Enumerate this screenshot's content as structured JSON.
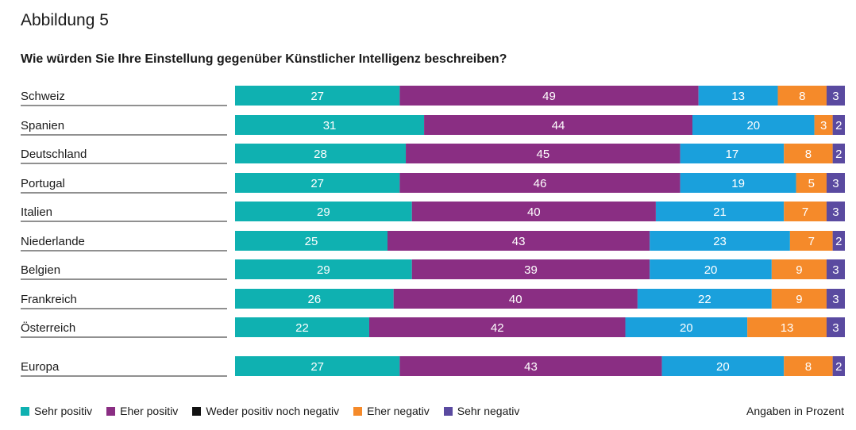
{
  "figure_label": "Abbildung 5",
  "unit_note": "Angaben in Prozent",
  "colors": {
    "sehr_positiv": "#0fb1b1",
    "eher_positiv": "#8a2e83",
    "weder": "#111111",
    "eher_negativ": "#f58a2a",
    "sehr_negativ": "#5a4aa0"
  },
  "chart_data": {
    "type": "bar",
    "orientation": "horizontal",
    "stacked": true,
    "title": "Wie würden Sie Ihre Einstellung gegenüber Künstlicher Intelligenz beschreiben?",
    "categories": [
      "Schweiz",
      "Spanien",
      "Deutschland",
      "Portugal",
      "Italien",
      "Niederlande",
      "Belgien",
      "Frankreich",
      "Österreich",
      "Europa"
    ],
    "series": [
      {
        "name": "Sehr positiv",
        "color": "#0fb1b1",
        "values": [
          27,
          31,
          28,
          27,
          29,
          25,
          29,
          26,
          22,
          27
        ]
      },
      {
        "name": "Eher positiv",
        "color": "#8a2e83",
        "values": [
          49,
          44,
          45,
          46,
          40,
          43,
          39,
          40,
          42,
          43
        ]
      },
      {
        "name": "Weder positiv noch negativ",
        "color": "#111111",
        "values": [
          0,
          0,
          0,
          0,
          0,
          0,
          0,
          0,
          0,
          0
        ]
      },
      {
        "name": "",
        "color": "#1aa0dc",
        "values": [
          13,
          20,
          17,
          19,
          21,
          23,
          20,
          22,
          20,
          20
        ]
      },
      {
        "name": "Eher negativ",
        "color": "#f58a2a",
        "values": [
          8,
          3,
          8,
          5,
          7,
          7,
          9,
          9,
          13,
          8
        ]
      },
      {
        "name": "Sehr negativ",
        "color": "#5a4aa0",
        "values": [
          3,
          2,
          2,
          3,
          3,
          2,
          3,
          3,
          3,
          2
        ]
      }
    ],
    "legend": [
      {
        "name": "Sehr positiv",
        "color": "#0fb1b1"
      },
      {
        "name": "Eher positiv",
        "color": "#8a2e83"
      },
      {
        "name": "Weder positiv noch negativ",
        "color": "#111111"
      },
      {
        "name": "Eher negativ",
        "color": "#f58a2a"
      },
      {
        "name": "Sehr negativ",
        "color": "#5a4aa0"
      }
    ],
    "legend_position": "bottom",
    "grid": false
  }
}
